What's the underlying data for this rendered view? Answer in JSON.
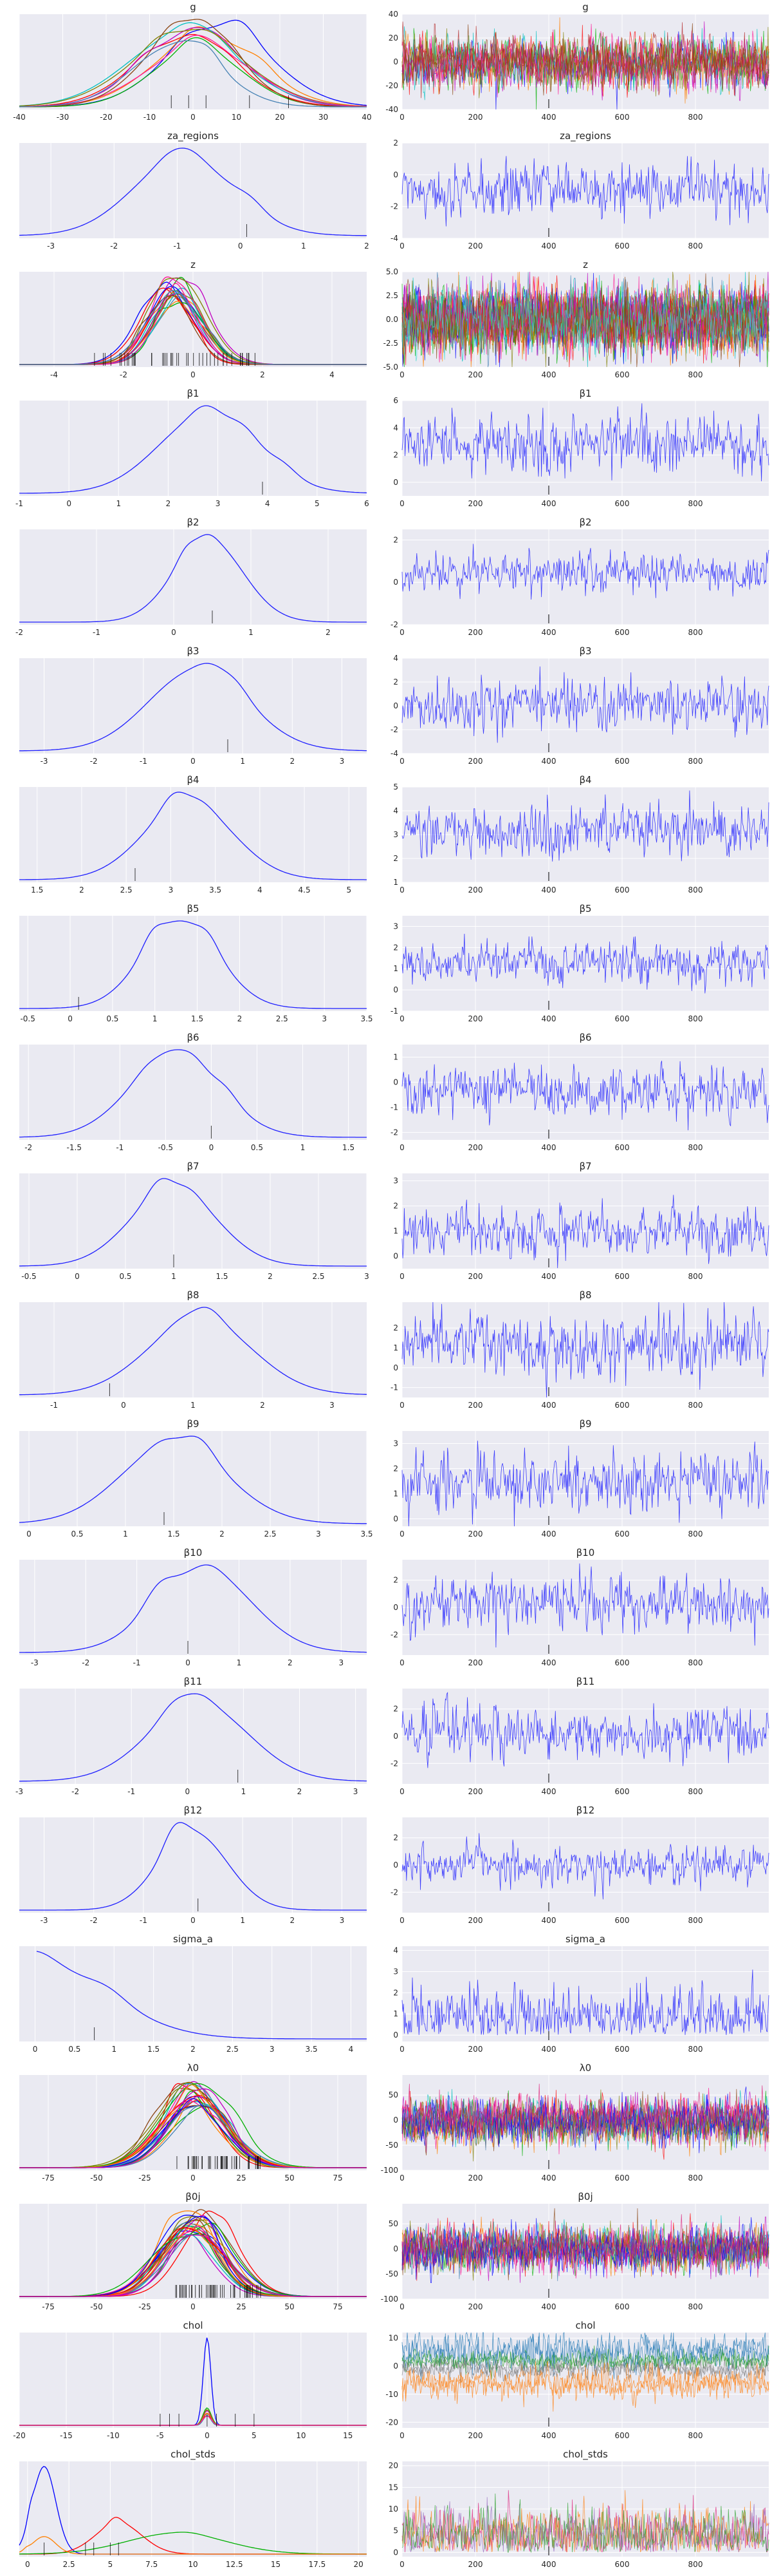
{
  "chart_data": {
    "type": "line",
    "layout": "traceplot",
    "background": "#eaeaf2",
    "grid": true,
    "colors": {
      "single": "#1f1fff",
      "multi": [
        "#0000ff",
        "#ff0000",
        "#00b000",
        "#ff8000",
        "#c000c0",
        "#00c0c0",
        "#808000",
        "#ff1493",
        "#8b4513",
        "#4682b4"
      ],
      "cyan": "#40e0d0",
      "magenta": "#dd1c77",
      "dark_red": "#b22222"
    },
    "trace_x": {
      "range": [
        0,
        1000
      ],
      "ticks": [
        0,
        200,
        400,
        600,
        800
      ]
    },
    "variables": [
      {
        "name": "g",
        "kde": {
          "xlim": [
            -40,
            40
          ],
          "xticks": [
            -40,
            -30,
            -20,
            -10,
            0,
            10,
            20,
            30,
            40
          ],
          "curves": [
            {
              "mu": 0,
              "sigma": 12,
              "bumps": 3
            }
          ],
          "n_curves": 10,
          "colored": true,
          "rug": [
            -5,
            -1,
            3,
            13,
            22
          ]
        },
        "trace": {
          "ylim": [
            -40,
            40
          ],
          "yticks": [
            -40,
            -20,
            0,
            20,
            40
          ],
          "center": 0,
          "spread": 10,
          "n_series": 10,
          "colored": true,
          "dominant": "dark_red"
        }
      },
      {
        "name": "za_regions",
        "kde": {
          "xlim": [
            -3.5,
            2
          ],
          "xticks": [
            -3,
            -2,
            -1,
            0,
            1,
            2
          ],
          "curves": [
            {
              "mu": -0.9,
              "sigma": 0.8,
              "bumps": 3
            }
          ],
          "rug": [
            0.1
          ]
        },
        "trace": {
          "ylim": [
            -4,
            2
          ],
          "yticks": [
            -4,
            -2,
            0,
            2
          ],
          "center": -0.9,
          "spread": 0.8
        }
      },
      {
        "name": "z",
        "kde": {
          "xlim": [
            -5,
            5
          ],
          "xticks": [
            -4,
            -2,
            0,
            2,
            4
          ],
          "curves": [
            {
              "mu": -0.5,
              "sigma": 0.7,
              "bumps": 2
            }
          ],
          "n_curves": 20,
          "colored": true,
          "rug_dense": [
            -3,
            2
          ]
        },
        "trace": {
          "ylim": [
            -5,
            5
          ],
          "yticks": [
            -5.0,
            -2.5,
            0.0,
            2.5,
            5.0
          ],
          "center": 0,
          "spread": 1.5,
          "n_series": 20,
          "colored": true,
          "dominant": "cyan"
        }
      },
      {
        "name": "β1",
        "kde": {
          "xlim": [
            -1,
            6
          ],
          "xticks": [
            -1,
            0,
            1,
            2,
            3,
            4,
            5,
            6
          ],
          "curves": [
            {
              "mu": 2.8,
              "sigma": 1.0,
              "bumps": 3
            }
          ],
          "rug": [
            3.9
          ]
        },
        "trace": {
          "ylim": [
            -1,
            6
          ],
          "yticks": [
            0,
            2,
            4,
            6
          ],
          "center": 2.8,
          "spread": 1.0
        }
      },
      {
        "name": "β2",
        "kde": {
          "xlim": [
            -2,
            2.5
          ],
          "xticks": [
            -2,
            -1,
            0,
            1,
            2
          ],
          "curves": [
            {
              "mu": 0.45,
              "sigma": 0.45,
              "bumps": 2
            }
          ],
          "rug": [
            0.5
          ]
        },
        "trace": {
          "ylim": [
            -2,
            2.5
          ],
          "yticks": [
            -2,
            0,
            2
          ],
          "center": 0.45,
          "spread": 0.45
        }
      },
      {
        "name": "β3",
        "kde": {
          "xlim": [
            -3.5,
            3.5
          ],
          "xticks": [
            -3,
            -2,
            -1,
            0,
            1,
            2,
            3
          ],
          "curves": [
            {
              "mu": 0.1,
              "sigma": 1.0,
              "bumps": 2
            }
          ],
          "rug": [
            0.7
          ]
        },
        "trace": {
          "ylim": [
            -4,
            4
          ],
          "yticks": [
            -4,
            -2,
            0,
            2,
            4
          ],
          "center": 0.1,
          "spread": 1.0
        }
      },
      {
        "name": "β4",
        "kde": {
          "xlim": [
            1.3,
            5.2
          ],
          "xticks": [
            1.5,
            2.0,
            2.5,
            3.0,
            3.5,
            4.0,
            4.5,
            5.0
          ],
          "curves": [
            {
              "mu": 3.2,
              "sigma": 0.5,
              "bumps": 3
            }
          ],
          "rug": [
            2.6
          ]
        },
        "trace": {
          "ylim": [
            1,
            5
          ],
          "yticks": [
            1,
            2,
            3,
            4,
            5
          ],
          "center": 3.2,
          "spread": 0.5
        }
      },
      {
        "name": "β5",
        "kde": {
          "xlim": [
            -0.6,
            3.5
          ],
          "xticks": [
            -0.5,
            0.0,
            0.5,
            1.0,
            1.5,
            2.0,
            2.5,
            3.0,
            3.5
          ],
          "curves": [
            {
              "mu": 1.3,
              "sigma": 0.45,
              "bumps": 3
            }
          ],
          "rug": [
            0.1
          ]
        },
        "trace": {
          "ylim": [
            -1,
            3.5
          ],
          "yticks": [
            -1,
            0,
            1,
            2,
            3
          ],
          "center": 1.3,
          "spread": 0.45
        }
      },
      {
        "name": "β6",
        "kde": {
          "xlim": [
            -2.1,
            1.7
          ],
          "xticks": [
            -2.0,
            -1.5,
            -1.0,
            -0.5,
            0.0,
            0.5,
            1.0,
            1.5
          ],
          "curves": [
            {
              "mu": -0.4,
              "sigma": 0.5,
              "bumps": 4
            }
          ],
          "rug": [
            0.0
          ]
        },
        "trace": {
          "ylim": [
            -2.3,
            1.5
          ],
          "yticks": [
            -2,
            -1,
            0,
            1
          ],
          "center": -0.4,
          "spread": 0.5
        }
      },
      {
        "name": "β7",
        "kde": {
          "xlim": [
            -0.6,
            3.0
          ],
          "xticks": [
            -0.5,
            0.0,
            0.5,
            1.0,
            1.5,
            2.0,
            2.5,
            3.0
          ],
          "curves": [
            {
              "mu": 1.0,
              "sigma": 0.45,
              "bumps": 3
            }
          ],
          "rug": [
            1.0
          ]
        },
        "trace": {
          "ylim": [
            -0.5,
            3.3
          ],
          "yticks": [
            0,
            1,
            2,
            3
          ],
          "center": 1.0,
          "spread": 0.45
        }
      },
      {
        "name": "β8",
        "kde": {
          "xlim": [
            -1.5,
            3.5
          ],
          "xticks": [
            -1,
            0,
            1,
            2,
            3
          ],
          "curves": [
            {
              "mu": 1.1,
              "sigma": 0.75,
              "bumps": 3
            }
          ],
          "rug": [
            -0.2
          ]
        },
        "trace": {
          "ylim": [
            -1.5,
            3.3
          ],
          "yticks": [
            -1,
            0,
            1,
            2
          ],
          "center": 1.1,
          "spread": 0.75
        }
      },
      {
        "name": "β9",
        "kde": {
          "xlim": [
            -0.1,
            3.5
          ],
          "xticks": [
            0.0,
            0.5,
            1.0,
            1.5,
            2.0,
            2.5,
            3.0,
            3.5
          ],
          "curves": [
            {
              "mu": 1.5,
              "sigma": 0.55,
              "bumps": 3
            }
          ],
          "rug": [
            1.4
          ]
        },
        "trace": {
          "ylim": [
            -0.3,
            3.5
          ],
          "yticks": [
            0,
            1,
            2,
            3
          ],
          "center": 1.5,
          "spread": 0.55
        }
      },
      {
        "name": "β10",
        "kde": {
          "xlim": [
            -3.3,
            3.5
          ],
          "xticks": [
            -3,
            -2,
            -1,
            0,
            1,
            2,
            3
          ],
          "curves": [
            {
              "mu": 0.3,
              "sigma": 0.95,
              "bumps": 3
            }
          ],
          "rug": [
            0.0
          ]
        },
        "trace": {
          "ylim": [
            -3.5,
            3.5
          ],
          "yticks": [
            -2,
            0,
            2
          ],
          "center": 0.3,
          "spread": 0.95
        }
      },
      {
        "name": "β11",
        "kde": {
          "xlim": [
            -3,
            3.2
          ],
          "xticks": [
            -3,
            -2,
            -1,
            0,
            1,
            2,
            3
          ],
          "curves": [
            {
              "mu": 0.2,
              "sigma": 0.9,
              "bumps": 3
            }
          ],
          "rug": [
            0.9
          ]
        },
        "trace": {
          "ylim": [
            -3.5,
            3.5
          ],
          "yticks": [
            -2,
            0,
            2
          ],
          "center": 0.2,
          "spread": 0.9
        }
      },
      {
        "name": "β12",
        "kde": {
          "xlim": [
            -3.5,
            3.5
          ],
          "xticks": [
            -3,
            -2,
            -1,
            0,
            1,
            2,
            3
          ],
          "curves": [
            {
              "mu": 0.0,
              "sigma": 0.7,
              "bumps": 3
            }
          ],
          "rug": [
            0.1
          ]
        },
        "trace": {
          "ylim": [
            -3.5,
            3.5
          ],
          "yticks": [
            -2,
            0,
            2
          ],
          "center": 0.0,
          "spread": 0.7
        }
      },
      {
        "name": "sigma_a",
        "kde": {
          "xlim": [
            -0.2,
            4.2
          ],
          "xticks": [
            0.0,
            0.5,
            1.0,
            1.5,
            2.0,
            2.5,
            3.0,
            3.5,
            4.0
          ],
          "curves": [
            {
              "mu": 0.0,
              "sigma": 0.9,
              "bumps": 3,
              "half": true
            }
          ],
          "rug": [
            0.75
          ]
        },
        "trace": {
          "ylim": [
            -0.3,
            4.2
          ],
          "yticks": [
            0,
            1,
            2,
            3,
            4
          ],
          "center": 0.8,
          "spread": 0.7,
          "positive": true
        }
      },
      {
        "name": "λ0",
        "kde": {
          "xlim": [
            -90,
            90
          ],
          "xticks": [
            -75,
            -50,
            -25,
            0,
            25,
            50,
            75
          ],
          "curves": [
            {
              "mu": 0,
              "sigma": 16,
              "bumps": 2
            }
          ],
          "n_curves": 25,
          "colored": true,
          "rug_dense": [
            -10,
            35
          ]
        },
        "trace": {
          "ylim": [
            -100,
            90
          ],
          "yticks": [
            -100,
            -50,
            0,
            50
          ],
          "center": 0,
          "spread": 20,
          "n_series": 12,
          "colored": true,
          "dominant": "magenta"
        }
      },
      {
        "name": "β0j",
        "kde": {
          "xlim": [
            -90,
            90
          ],
          "xticks": [
            -75,
            -50,
            -25,
            0,
            25,
            50,
            75
          ],
          "curves": [
            {
              "mu": 0,
              "sigma": 16,
              "bumps": 2
            }
          ],
          "n_curves": 25,
          "colored": true,
          "rug_dense": [
            -10,
            35
          ]
        },
        "trace": {
          "ylim": [
            -100,
            90
          ],
          "yticks": [
            -100,
            -50,
            0,
            50
          ],
          "center": 0,
          "spread": 20,
          "n_series": 12,
          "colored": true,
          "dominant": "magenta"
        }
      },
      {
        "name": "chol",
        "kde": {
          "xlim": [
            -20,
            17
          ],
          "xticks": [
            -20,
            -15,
            -10,
            -5,
            0,
            5,
            10,
            15
          ],
          "curves": [
            {
              "mu": 0,
              "sigma": 0.4,
              "bumps": 0
            }
          ],
          "n_curves": 8,
          "colored": true,
          "spike": true,
          "rug": [
            -5,
            -4,
            -3,
            0,
            1,
            3,
            5
          ]
        },
        "trace": {
          "ylim": [
            -22,
            12
          ],
          "yticks": [
            -20,
            -10,
            0,
            10
          ],
          "center": 0,
          "spread": 2,
          "n_series": 8,
          "colored": true,
          "bands": [
            5,
            2,
            -1,
            -6
          ],
          "band_colors": [
            "#1f77b4",
            "#2ca02c",
            "#7f7f7f",
            "#ff7f0e"
          ]
        }
      },
      {
        "name": "chol_stds",
        "kde": {
          "xlim": [
            -0.5,
            20.5
          ],
          "xticks": [
            0.0,
            2.5,
            5.0,
            7.5,
            10.0,
            12.5,
            15.0,
            17.5,
            20.0
          ],
          "curves": [
            {
              "mu": 1.0,
              "sigma": 0.7,
              "bumps": 1
            },
            {
              "mu": 5.5,
              "sigma": 1.4,
              "bumps": 2
            },
            {
              "mu": 9.0,
              "sigma": 3.0,
              "bumps": 1
            }
          ],
          "n_curves": 4,
          "colored": true,
          "rug": [
            1,
            3.5,
            4,
            5,
            5.5
          ]
        },
        "trace": {
          "ylim": [
            -1,
            21
          ],
          "yticks": [
            0,
            5,
            10,
            15,
            20
          ],
          "center": 4,
          "spread": 3,
          "n_series": 4,
          "colored": true,
          "positive": true,
          "band_colors": [
            "#dd1c77",
            "#ff7f0e",
            "#9467bd",
            "#2ca02c"
          ]
        }
      }
    ]
  }
}
